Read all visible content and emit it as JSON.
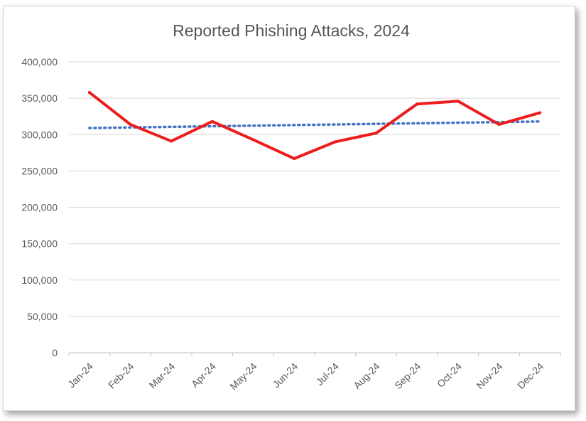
{
  "chart_data": {
    "type": "line",
    "title": "Reported Phishing Attacks, 2024",
    "xlabel": "",
    "ylabel": "",
    "categories": [
      "Jan-24",
      "Feb-24",
      "Mar-24",
      "Apr-24",
      "May-24",
      "Jun-24",
      "Jul-24",
      "Aug-24",
      "Sep-24",
      "Oct-24",
      "Nov-24",
      "Dec-24"
    ],
    "y_tick_labels": [
      "0",
      "50,000",
      "100,000",
      "150,000",
      "200,000",
      "250,000",
      "300,000",
      "350,000",
      "400,000"
    ],
    "ylim": [
      0,
      400000
    ],
    "y_tick_step": 50000,
    "grid": true,
    "legend": "none",
    "series": [
      {
        "values": [
          358000,
          314000,
          291000,
          318000,
          293000,
          267000,
          290000,
          302000,
          342000,
          346000,
          314000,
          330000
        ],
        "color": "#ee1c1c",
        "style": "solid"
      }
    ],
    "trendline": {
      "type": "linear",
      "start": 309000,
      "end": 318000,
      "color": "#4472c4",
      "style": "dotted"
    }
  }
}
